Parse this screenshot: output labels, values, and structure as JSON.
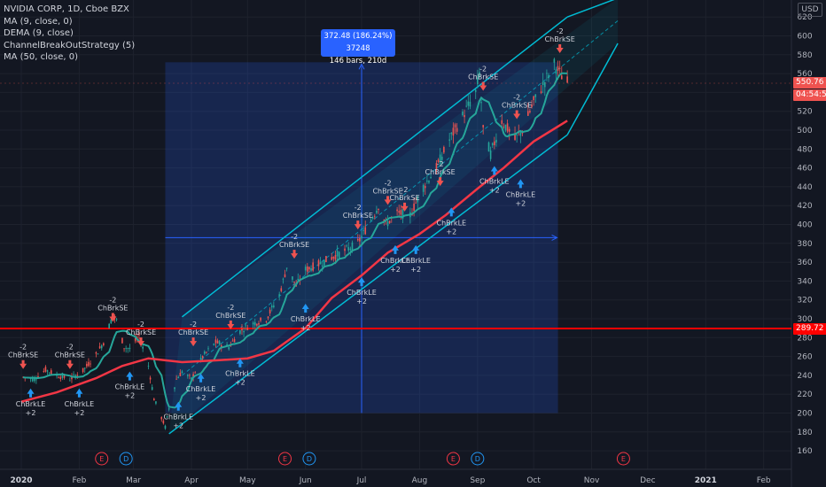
{
  "legend": {
    "title": "NVIDIA CORP, 1D, Cboe BZX",
    "ind1": "MA (9, close, 0)",
    "ind2": "DEMA (9, close)",
    "ind3": "ChannelBreakOutStrategy (5)",
    "ind4": "MA (50, close, 0)"
  },
  "currency": "USD",
  "measure": {
    "line1": "372.48 (186.24%) 37248",
    "line2": "146 bars, 210d"
  },
  "price_tags": {
    "last": "550.76",
    "countdown": "04:54:50",
    "hline": "289.72"
  },
  "colors": {
    "bg": "#131722",
    "up": "#26a69a",
    "down": "#ef5350",
    "ma_fast": "#26a69a",
    "ma_slow": "#f23645",
    "channel": "#00bcd4",
    "measure": "#2962ff",
    "hline": "#ff0000"
  },
  "chart_data": {
    "type": "candlestick",
    "y_axis": {
      "min": 160,
      "max": 620,
      "ticks": [
        160,
        180,
        200,
        220,
        240,
        260,
        280,
        300,
        320,
        340,
        360,
        380,
        400,
        420,
        440,
        460,
        480,
        500,
        520,
        540,
        560,
        580,
        600,
        620
      ]
    },
    "x_axis": {
      "labels": [
        "2020",
        "Feb",
        "Mar",
        "Apr",
        "May",
        "Jun",
        "Jul",
        "Aug",
        "Sep",
        "Oct",
        "Nov",
        "Dec",
        "2021",
        "Feb"
      ]
    },
    "x_label_dates": [
      "2020-01-01",
      "2020-02-01",
      "2020-03-01",
      "2020-04-01",
      "2020-05-01",
      "2020-06-01",
      "2020-07-01",
      "2020-08-01",
      "2020-09-01",
      "2020-10-01",
      "2020-11-01",
      "2020-12-01",
      "2021-01-01",
      "2021-02-01"
    ],
    "close_path": [
      [
        "2020-01-02",
        238
      ],
      [
        "2020-01-08",
        236
      ],
      [
        "2020-01-14",
        246
      ],
      [
        "2020-01-20",
        240
      ],
      [
        "2020-01-27",
        236
      ],
      [
        "2020-02-03",
        245
      ],
      [
        "2020-02-10",
        262
      ],
      [
        "2020-02-14",
        275
      ],
      [
        "2020-02-19",
        304
      ],
      [
        "2020-02-21",
        298
      ],
      [
        "2020-02-25",
        270
      ],
      [
        "2020-02-28",
        268
      ],
      [
        "2020-03-04",
        282
      ],
      [
        "2020-03-09",
        250
      ],
      [
        "2020-03-12",
        215
      ],
      [
        "2020-03-16",
        195
      ],
      [
        "2020-03-18",
        185
      ],
      [
        "2020-03-20",
        205
      ],
      [
        "2020-03-24",
        236
      ],
      [
        "2020-03-27",
        244
      ],
      [
        "2020-04-01",
        236
      ],
      [
        "2020-04-07",
        260
      ],
      [
        "2020-04-14",
        275
      ],
      [
        "2020-04-21",
        270
      ],
      [
        "2020-04-27",
        287
      ],
      [
        "2020-05-04",
        295
      ],
      [
        "2020-05-11",
        300
      ],
      [
        "2020-05-18",
        325
      ],
      [
        "2020-05-22",
        355
      ],
      [
        "2020-05-27",
        335
      ],
      [
        "2020-06-01",
        352
      ],
      [
        "2020-06-08",
        358
      ],
      [
        "2020-06-15",
        365
      ],
      [
        "2020-06-22",
        372
      ],
      [
        "2020-06-29",
        380
      ],
      [
        "2020-07-06",
        405
      ],
      [
        "2020-07-10",
        420
      ],
      [
        "2020-07-14",
        400
      ],
      [
        "2020-07-20",
        412
      ],
      [
        "2020-07-27",
        410
      ],
      [
        "2020-08-03",
        440
      ],
      [
        "2020-08-10",
        460
      ],
      [
        "2020-08-17",
        490
      ],
      [
        "2020-08-24",
        515
      ],
      [
        "2020-08-31",
        540
      ],
      [
        "2020-09-02",
        560
      ],
      [
        "2020-09-04",
        500
      ],
      [
        "2020-09-08",
        475
      ],
      [
        "2020-09-14",
        510
      ],
      [
        "2020-09-21",
        490
      ],
      [
        "2020-09-25",
        500
      ],
      [
        "2020-10-01",
        530
      ],
      [
        "2020-10-06",
        548
      ],
      [
        "2020-10-12",
        570
      ],
      [
        "2020-10-15",
        560
      ],
      [
        "2020-10-19",
        551
      ]
    ],
    "ma50_path": [
      [
        "2020-01-01",
        212
      ],
      [
        "2020-01-20",
        222
      ],
      [
        "2020-02-10",
        237
      ],
      [
        "2020-02-24",
        250
      ],
      [
        "2020-03-09",
        258
      ],
      [
        "2020-03-27",
        254
      ],
      [
        "2020-04-15",
        256
      ],
      [
        "2020-05-01",
        258
      ],
      [
        "2020-05-15",
        266
      ],
      [
        "2020-06-01",
        290
      ],
      [
        "2020-06-15",
        322
      ],
      [
        "2020-07-01",
        346
      ],
      [
        "2020-07-15",
        370
      ],
      [
        "2020-08-01",
        390
      ],
      [
        "2020-08-15",
        410
      ],
      [
        "2020-09-01",
        438
      ],
      [
        "2020-09-15",
        460
      ],
      [
        "2020-10-01",
        488
      ],
      [
        "2020-10-19",
        510
      ]
    ],
    "channel": {
      "upper": [
        [
          "2020-03-27",
          302
        ],
        [
          "2020-10-19",
          620
        ]
      ],
      "lower": [
        [
          "2020-03-20",
          178
        ],
        [
          "2020-10-19",
          495
        ]
      ],
      "upper_ext": [
        [
          "2020-10-19",
          620
        ],
        [
          "2020-11-15",
          640
        ]
      ],
      "lower_ext": [
        [
          "2020-10-19",
          495
        ],
        [
          "2020-11-15",
          592
        ]
      ]
    },
    "measure_box": {
      "from": "2020-03-18",
      "to": "2020-10-14",
      "low": 200,
      "high": 572,
      "change": 372.48,
      "pct": 186.24,
      "bars": 146,
      "days": 210
    },
    "hline": 289.72,
    "signals": [
      {
        "date": "2020-01-02",
        "side": "SE",
        "price": 258,
        "text": "ChBrkSE",
        "qty": "-2"
      },
      {
        "date": "2020-01-06",
        "side": "LE",
        "price": 226,
        "text": "ChBrkLE",
        "qty": "+2"
      },
      {
        "date": "2020-01-27",
        "side": "SE",
        "price": 258,
        "text": "ChBrkSE",
        "qty": "-2"
      },
      {
        "date": "2020-02-01",
        "side": "LE",
        "price": 226,
        "text": "ChBrkLE",
        "qty": "+2"
      },
      {
        "date": "2020-02-19",
        "side": "SE",
        "price": 308,
        "text": "ChBrkSE",
        "qty": "-2"
      },
      {
        "date": "2020-02-28",
        "side": "LE",
        "price": 244,
        "text": "ChBrkLE",
        "qty": "+2"
      },
      {
        "date": "2020-03-05",
        "side": "SE",
        "price": 282,
        "text": "ChBrkSE",
        "qty": "-2"
      },
      {
        "date": "2020-03-25",
        "side": "LE",
        "price": 212,
        "text": "ChBrkLE",
        "qty": "+2"
      },
      {
        "date": "2020-04-02",
        "side": "SE",
        "price": 282,
        "text": "ChBrkSE",
        "qty": "-2"
      },
      {
        "date": "2020-04-06",
        "side": "LE",
        "price": 242,
        "text": "ChBrkLE",
        "qty": "+2"
      },
      {
        "date": "2020-04-22",
        "side": "SE",
        "price": 300,
        "text": "ChBrkSE",
        "qty": "-2"
      },
      {
        "date": "2020-04-27",
        "side": "LE",
        "price": 258,
        "text": "ChBrkLE",
        "qty": "+2"
      },
      {
        "date": "2020-05-26",
        "side": "SE",
        "price": 375,
        "text": "ChBrkSE",
        "qty": "-2"
      },
      {
        "date": "2020-06-01",
        "side": "LE",
        "price": 316,
        "text": "ChBrkLE",
        "qty": "+2"
      },
      {
        "date": "2020-06-29",
        "side": "SE",
        "price": 406,
        "text": "ChBrkSE",
        "qty": "-2"
      },
      {
        "date": "2020-07-01",
        "side": "LE",
        "price": 344,
        "text": "ChBrkLE",
        "qty": "+2"
      },
      {
        "date": "2020-07-15",
        "side": "SE",
        "price": 432,
        "text": "ChBrkSE",
        "qty": "-2"
      },
      {
        "date": "2020-07-19",
        "side": "LE",
        "price": 378,
        "text": "ChBrkLE",
        "qty": "+2"
      },
      {
        "date": "2020-07-24",
        "side": "SE",
        "price": 425,
        "text": "ChBrkSE",
        "qty": "-2"
      },
      {
        "date": "2020-07-30",
        "side": "LE",
        "price": 378,
        "text": "ChBrkLE",
        "qty": "+2"
      },
      {
        "date": "2020-08-12",
        "side": "SE",
        "price": 452,
        "text": "ChBrkSE",
        "qty": "-2"
      },
      {
        "date": "2020-08-18",
        "side": "LE",
        "price": 418,
        "text": "ChBrkLE",
        "qty": "+2"
      },
      {
        "date": "2020-09-04",
        "side": "SE",
        "price": 553,
        "text": "ChBrkSE",
        "qty": "-2"
      },
      {
        "date": "2020-09-10",
        "side": "LE",
        "price": 462,
        "text": "ChBrkLE",
        "qty": "+2"
      },
      {
        "date": "2020-09-22",
        "side": "SE",
        "price": 523,
        "text": "ChBrkSE",
        "qty": "-2"
      },
      {
        "date": "2020-09-24",
        "side": "LE",
        "price": 448,
        "text": "ChBrkLE",
        "qty": "+2"
      },
      {
        "date": "2020-10-15",
        "side": "SE",
        "price": 593,
        "text": "ChBrkSE",
        "qty": "-2"
      }
    ],
    "events": [
      {
        "date": "2020-02-13",
        "type": "E"
      },
      {
        "date": "2020-02-26",
        "type": "D"
      },
      {
        "date": "2020-05-21",
        "type": "E"
      },
      {
        "date": "2020-06-03",
        "type": "D"
      },
      {
        "date": "2020-08-19",
        "type": "E"
      },
      {
        "date": "2020-09-01",
        "type": "D"
      },
      {
        "date": "2020-11-18",
        "type": "E"
      }
    ]
  }
}
